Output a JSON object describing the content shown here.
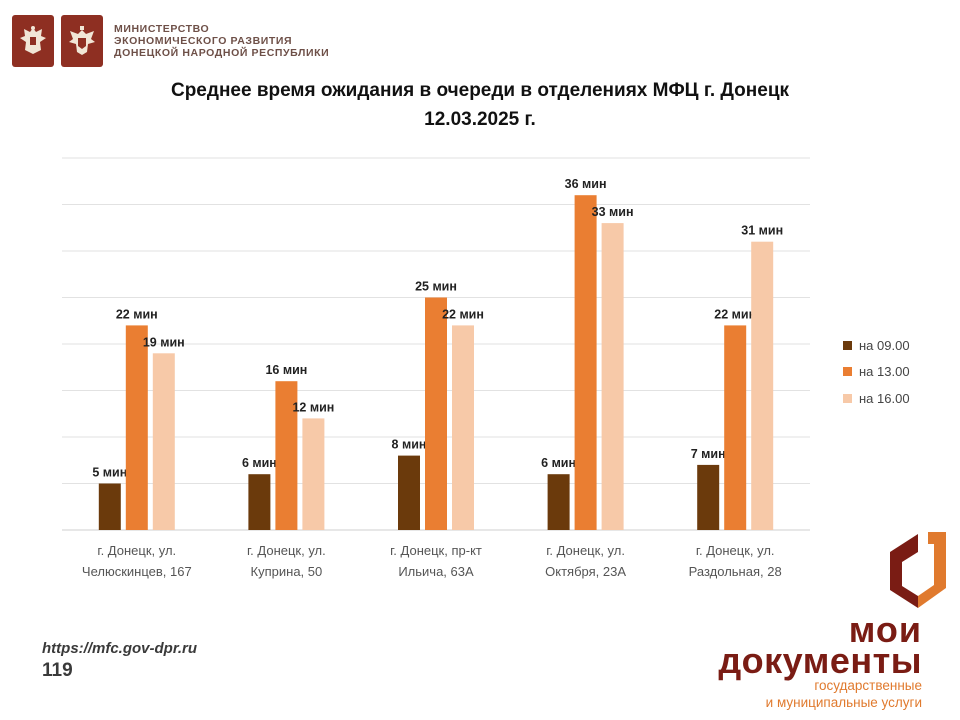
{
  "header": {
    "ministry_lines": [
      "МИНИСТЕРСТВО",
      "ЭКОНОМИЧЕСКОГО РАЗВИТИЯ",
      "ДОНЕЦКОЙ НАРОДНОЙ РЕСПУБЛИКИ"
    ],
    "emblem_icons": [
      "double-headed-eagle-emblem-icon",
      "dpr-eagle-emblem-icon"
    ]
  },
  "chart_data": {
    "type": "bar",
    "title": "Среднее время ожидания в очереди в отделениях МФЦ г. Донецк",
    "subtitle": "12.03.2025 г.",
    "xlabel": "",
    "ylabel": "",
    "ylim": [
      0,
      40
    ],
    "grid": true,
    "legend_position": "right",
    "categories": [
      [
        "г. Донецк, ул.",
        "Челюскинцев, 167"
      ],
      [
        "г. Донецк, ул.",
        "Куприна, 50"
      ],
      [
        "г. Донецк, пр-кт",
        "Ильича, 63А"
      ],
      [
        "г. Донецк, ул.",
        "Октября, 23А"
      ],
      [
        "г. Донецк, ул.",
        "Раздольная, 28"
      ]
    ],
    "value_suffix": " мин",
    "series": [
      {
        "name": "на 09.00",
        "color": "#6b3a0c",
        "values": [
          5,
          6,
          8,
          6,
          7
        ]
      },
      {
        "name": "на 13.00",
        "color": "#ea7e32",
        "values": [
          22,
          16,
          25,
          36,
          22
        ]
      },
      {
        "name": "на 16.00",
        "color": "#f7c9a8",
        "values": [
          19,
          12,
          22,
          33,
          31
        ]
      }
    ]
  },
  "footer": {
    "url": "https://mfc.gov-dpr.ru",
    "page_number": "119",
    "brand_line1": "мои",
    "brand_line2": "документы",
    "brand_line3": "государственные",
    "brand_line4": "и муниципальные услуги",
    "brand_colors": {
      "dark": "#7a1c14",
      "accent": "#e07a2e"
    }
  }
}
